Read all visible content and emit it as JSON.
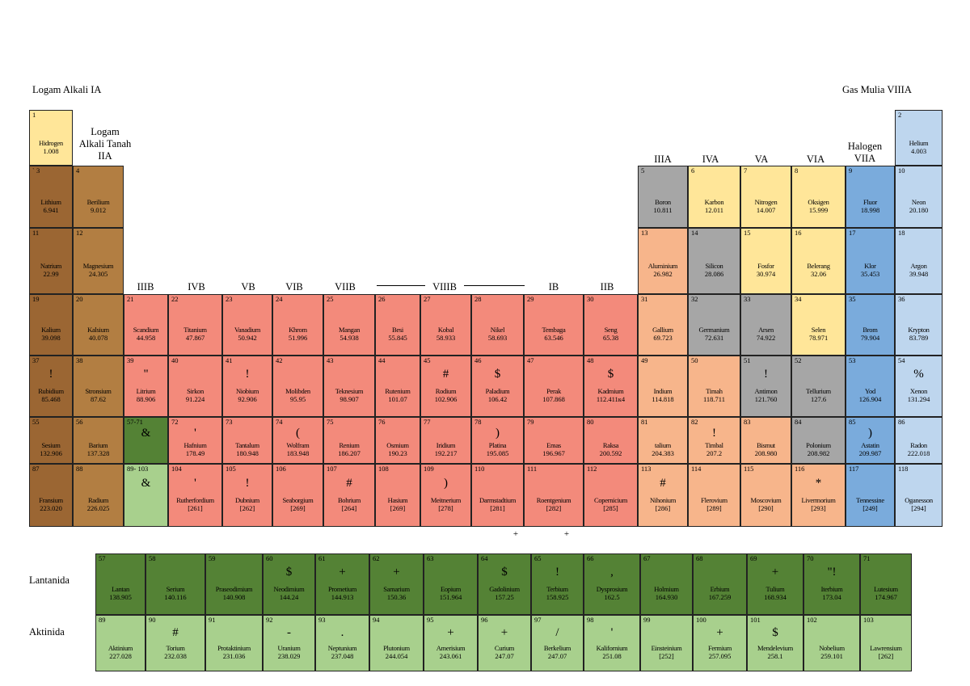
{
  "colors": {
    "alkali": "#9b6633",
    "alkaline": "#b27e42",
    "transition": "#f38a7b",
    "post": "#f7b58b",
    "metalloid": "#a6a6a6",
    "nonmetal": "#ffe699",
    "halogen": "#7aabdc",
    "noble": "#bed6ee",
    "lanthanide": "#548235",
    "actinide": "#a8d08d"
  },
  "group_labels": {
    "g1": "Logam Alkali IA",
    "g2": "Logam\nAlkali Tanah\nIIA",
    "g3": "IIIB",
    "g4": "IVB",
    "g5": "VB",
    "g6": "VIB",
    "g7": "VIIB",
    "g8": "VIIIB",
    "g11": "IB",
    "g12": "IIB",
    "g13": "IIIA",
    "g14": "IVA",
    "g15": "VA",
    "g16": "VIA",
    "g17": "Halogen\nVIIA",
    "g18": "Gas Mulia VIIIA"
  },
  "row_labels": {
    "lanthanide": "Lantanida",
    "actinide": "Aktinida"
  },
  "extra_marks": {
    "plus_a": "+",
    "plus_b": "+"
  },
  "elements": [
    {
      "n": "1",
      "name": "Hidrogen",
      "mass": "1.008",
      "sym": "",
      "cat": "nonmetal",
      "g": 1,
      "p": 1
    },
    {
      "n": "2",
      "name": "Helium",
      "mass": "4.003",
      "sym": "",
      "cat": "noble",
      "g": 18,
      "p": 1
    },
    {
      "n": "` 3",
      "name": "Lithium",
      "mass": "6.941",
      "sym": "",
      "cat": "alkali",
      "g": 1,
      "p": 2
    },
    {
      "n": "4",
      "name": "Berilium",
      "mass": "9.012",
      "sym": "",
      "cat": "alkaline",
      "g": 2,
      "p": 2
    },
    {
      "n": "5",
      "name": "Boron",
      "mass": "10.811",
      "sym": "",
      "cat": "metalloid",
      "g": 13,
      "p": 2
    },
    {
      "n": "6",
      "name": "Karbon",
      "mass": "12.011",
      "sym": "",
      "cat": "nonmetal",
      "g": 14,
      "p": 2
    },
    {
      "n": "7",
      "name": "Nitrogen",
      "mass": "14.007",
      "sym": "",
      "cat": "nonmetal",
      "g": 15,
      "p": 2
    },
    {
      "n": "8",
      "name": "Oksigen",
      "mass": "15.999",
      "sym": "",
      "cat": "nonmetal",
      "g": 16,
      "p": 2
    },
    {
      "n": "9",
      "name": "Fluor",
      "mass": "18.998",
      "sym": "",
      "cat": "halogen",
      "g": 17,
      "p": 2
    },
    {
      "n": "10",
      "name": "Neon",
      "mass": "20.180",
      "sym": "",
      "cat": "noble",
      "g": 18,
      "p": 2
    },
    {
      "n": "11",
      "name": "Natrium",
      "mass": "22.99",
      "sym": "",
      "cat": "alkali",
      "g": 1,
      "p": 3
    },
    {
      "n": "12",
      "name": "Magnesium",
      "mass": "24.305",
      "sym": "",
      "cat": "alkaline",
      "g": 2,
      "p": 3
    },
    {
      "n": "13",
      "name": "Aluminium",
      "mass": "26.982",
      "sym": "",
      "cat": "post",
      "g": 13,
      "p": 3
    },
    {
      "n": "14",
      "name": "Silicon",
      "mass": "28.086",
      "sym": "",
      "cat": "metalloid",
      "g": 14,
      "p": 3
    },
    {
      "n": "15",
      "name": "Fosfor",
      "mass": "30.974",
      "sym": "",
      "cat": "nonmetal",
      "g": 15,
      "p": 3
    },
    {
      "n": "16",
      "name": "Belerang",
      "mass": "32.06",
      "sym": "",
      "cat": "nonmetal",
      "g": 16,
      "p": 3
    },
    {
      "n": "17",
      "name": "Klor",
      "mass": "35.453",
      "sym": "",
      "cat": "halogen",
      "g": 17,
      "p": 3
    },
    {
      "n": "18",
      "name": "Argon",
      "mass": "39.948",
      "sym": "",
      "cat": "noble",
      "g": 18,
      "p": 3
    },
    {
      "n": "19",
      "name": "Kalium",
      "mass": "39.098",
      "sym": "",
      "cat": "alkali",
      "g": 1,
      "p": 4
    },
    {
      "n": "20",
      "name": "Kalsium",
      "mass": "40.078",
      "sym": "",
      "cat": "alkaline",
      "g": 2,
      "p": 4
    },
    {
      "n": "21",
      "name": "Scandium",
      "mass": "44.958",
      "sym": "",
      "cat": "transition",
      "g": 3,
      "p": 4
    },
    {
      "n": "22",
      "name": "Titanium",
      "mass": "47.867",
      "sym": "",
      "cat": "transition",
      "g": 4,
      "p": 4
    },
    {
      "n": "23",
      "name": "Vanadium",
      "mass": "50.942",
      "sym": "",
      "cat": "transition",
      "g": 5,
      "p": 4
    },
    {
      "n": "24",
      "name": "Khrom",
      "mass": "51.996",
      "sym": "",
      "cat": "transition",
      "g": 6,
      "p": 4
    },
    {
      "n": "25",
      "name": "Mangan",
      "mass": "54.938",
      "sym": "",
      "cat": "transition",
      "g": 7,
      "p": 4
    },
    {
      "n": "26",
      "name": "Besi",
      "mass": "55.845",
      "sym": "",
      "cat": "transition",
      "g": 8,
      "p": 4
    },
    {
      "n": "27",
      "name": "Kobal",
      "mass": "58.933",
      "sym": "",
      "cat": "transition",
      "g": 9,
      "p": 4
    },
    {
      "n": "28",
      "name": "Nikel",
      "mass": "58.693",
      "sym": "",
      "cat": "transition",
      "g": 10,
      "p": 4
    },
    {
      "n": "29",
      "name": "Tembaga",
      "mass": "63.546",
      "sym": "",
      "cat": "transition",
      "g": 11,
      "p": 4
    },
    {
      "n": "30",
      "name": "Seng",
      "mass": "65.38",
      "sym": "",
      "cat": "transition",
      "g": 12,
      "p": 4
    },
    {
      "n": "31",
      "name": "Gallium",
      "mass": "69.723",
      "sym": "",
      "cat": "post",
      "g": 13,
      "p": 4
    },
    {
      "n": "32",
      "name": "Germanium",
      "mass": "72.631",
      "sym": "",
      "cat": "metalloid",
      "g": 14,
      "p": 4
    },
    {
      "n": "33",
      "name": "Arsen",
      "mass": "74.922",
      "sym": "",
      "cat": "metalloid",
      "g": 15,
      "p": 4
    },
    {
      "n": "34",
      "name": "Selen",
      "mass": "78.971",
      "sym": "",
      "cat": "nonmetal",
      "g": 16,
      "p": 4
    },
    {
      "n": "35",
      "name": "Brom",
      "mass": "79.904",
      "sym": "",
      "cat": "halogen",
      "g": 17,
      "p": 4
    },
    {
      "n": "36",
      "name": "Krypton",
      "mass": "83.789",
      "sym": "",
      "cat": "noble",
      "g": 18,
      "p": 4
    },
    {
      "n": "37",
      "name": "Rubidium",
      "mass": "85.468",
      "sym": "!",
      "cat": "alkali",
      "g": 1,
      "p": 5
    },
    {
      "n": "38",
      "name": "Stronsium",
      "mass": "87.62",
      "sym": "",
      "cat": "alkaline",
      "g": 2,
      "p": 5
    },
    {
      "n": "39",
      "name": "Litrium",
      "mass": "88.906",
      "sym": "\"",
      "cat": "transition",
      "g": 3,
      "p": 5
    },
    {
      "n": "40",
      "name": "Sirkon",
      "mass": "91.224",
      "sym": "",
      "cat": "transition",
      "g": 4,
      "p": 5
    },
    {
      "n": "41",
      "name": "Niobium",
      "mass": "92.906",
      "sym": "!",
      "cat": "transition",
      "g": 5,
      "p": 5
    },
    {
      "n": "42",
      "name": "Molibden",
      "mass": "95.95",
      "sym": "",
      "cat": "transition",
      "g": 6,
      "p": 5
    },
    {
      "n": "43",
      "name": "Teknesium",
      "mass": "98.907",
      "sym": "",
      "cat": "transition",
      "g": 7,
      "p": 5
    },
    {
      "n": "44",
      "name": "Rutenium",
      "mass": "101.07",
      "sym": "",
      "cat": "transition",
      "g": 8,
      "p": 5
    },
    {
      "n": "45",
      "name": "Rodium",
      "mass": "102.906",
      "sym": "#",
      "cat": "transition",
      "g": 9,
      "p": 5
    },
    {
      "n": "46",
      "name": "Paladium",
      "mass": "106.42",
      "sym": "$",
      "cat": "transition",
      "g": 10,
      "p": 5
    },
    {
      "n": "47",
      "name": "Perak",
      "mass": "107.868",
      "sym": "",
      "cat": "transition",
      "g": 11,
      "p": 5
    },
    {
      "n": "48",
      "name": "Kadmium",
      "mass": "112.411к4",
      "sym": "$",
      "cat": "transition",
      "g": 12,
      "p": 5
    },
    {
      "n": "49",
      "name": "Indium",
      "mass": "114.818",
      "sym": "",
      "cat": "post",
      "g": 13,
      "p": 5
    },
    {
      "n": "50",
      "name": "Timah",
      "mass": "118.711",
      "sym": "",
      "cat": "post",
      "g": 14,
      "p": 5
    },
    {
      "n": "51",
      "name": "Antimon",
      "mass": "121.760",
      "sym": "!",
      "cat": "metalloid",
      "g": 15,
      "p": 5
    },
    {
      "n": "52",
      "name": "Tellurium",
      "mass": "127.6",
      "sym": "",
      "cat": "metalloid",
      "g": 16,
      "p": 5
    },
    {
      "n": "53",
      "name": "Yod",
      "mass": "126.904",
      "sym": "",
      "cat": "halogen",
      "g": 17,
      "p": 5
    },
    {
      "n": "54",
      "name": "Xenon",
      "mass": "131.294",
      "sym": "%",
      "cat": "noble",
      "g": 18,
      "p": 5
    },
    {
      "n": "55",
      "name": "Sesium",
      "mass": "132.906",
      "sym": "",
      "cat": "alkali",
      "g": 1,
      "p": 6
    },
    {
      "n": "56",
      "name": "Barium",
      "mass": "137.328",
      "sym": "",
      "cat": "alkaline",
      "g": 2,
      "p": 6
    },
    {
      "n": "57-71",
      "name": "",
      "mass": "",
      "sym": "&",
      "cat": "lanthanide",
      "g": 3,
      "p": 6
    },
    {
      "n": "72",
      "name": "Hafnium",
      "mass": "178.49",
      "sym": "'",
      "cat": "transition",
      "g": 4,
      "p": 6
    },
    {
      "n": "73",
      "name": "Tantalum",
      "mass": "180.948",
      "sym": "",
      "cat": "transition",
      "g": 5,
      "p": 6
    },
    {
      "n": "74",
      "name": "Wolfram",
      "mass": "183.948",
      "sym": "(",
      "cat": "transition",
      "g": 6,
      "p": 6
    },
    {
      "n": "75",
      "name": "Renium",
      "mass": "186.207",
      "sym": "",
      "cat": "transition",
      "g": 7,
      "p": 6
    },
    {
      "n": "76",
      "name": "Osmium",
      "mass": "190.23",
      "sym": "",
      "cat": "transition",
      "g": 8,
      "p": 6
    },
    {
      "n": "77",
      "name": "Iridium",
      "mass": "192.217",
      "sym": "",
      "cat": "transition",
      "g": 9,
      "p": 6
    },
    {
      "n": "78",
      "name": "Platina",
      "mass": "195.085",
      "sym": ")",
      "cat": "transition",
      "g": 10,
      "p": 6
    },
    {
      "n": "79",
      "name": "Emas",
      "mass": "196.967",
      "sym": "",
      "cat": "transition",
      "g": 11,
      "p": 6
    },
    {
      "n": "80",
      "name": "Raksa",
      "mass": "200.592",
      "sym": "",
      "cat": "transition",
      "g": 12,
      "p": 6
    },
    {
      "n": "81",
      "name": "talium",
      "mass": "204.383",
      "sym": "",
      "cat": "post",
      "g": 13,
      "p": 6
    },
    {
      "n": "82",
      "name": "Timbal",
      "mass": "207.2",
      "sym": "!",
      "cat": "post",
      "g": 14,
      "p": 6
    },
    {
      "n": "83",
      "name": "Bismut",
      "mass": "208.980",
      "sym": "",
      "cat": "post",
      "g": 15,
      "p": 6
    },
    {
      "n": "84",
      "name": "Polonium",
      "mass": "208.982",
      "sym": "",
      "cat": "metalloid",
      "g": 16,
      "p": 6
    },
    {
      "n": "85",
      "name": "Astatin",
      "mass": "209.987",
      "sym": ")",
      "cat": "halogen",
      "g": 17,
      "p": 6
    },
    {
      "n": "86",
      "name": "Radon",
      "mass": "222.018",
      "sym": "",
      "cat": "noble",
      "g": 18,
      "p": 6
    },
    {
      "n": "87",
      "name": "Fransium",
      "mass": "223.020",
      "sym": "",
      "cat": "alkali",
      "g": 1,
      "p": 7
    },
    {
      "n": "88",
      "name": "Radium",
      "mass": "226.025",
      "sym": "",
      "cat": "alkaline",
      "g": 2,
      "p": 7
    },
    {
      "n": "89- 103",
      "name": "",
      "mass": "",
      "sym": "&",
      "cat": "actinide",
      "g": 3,
      "p": 7
    },
    {
      "n": "104",
      "name": "Rutherfordium",
      "mass": "[261]",
      "sym": "'",
      "cat": "transition",
      "g": 4,
      "p": 7
    },
    {
      "n": "105",
      "name": "Dubnium",
      "mass": "[262]",
      "sym": "!",
      "cat": "transition",
      "g": 5,
      "p": 7
    },
    {
      "n": "106",
      "name": "Seaborgium",
      "mass": "[269]",
      "sym": "",
      "cat": "transition",
      "g": 6,
      "p": 7
    },
    {
      "n": "107",
      "name": "Bohrium",
      "mass": "[264]",
      "sym": "#",
      "cat": "transition",
      "g": 7,
      "p": 7
    },
    {
      "n": "108",
      "name": "Hasium",
      "mass": "[269]",
      "sym": "",
      "cat": "transition",
      "g": 8,
      "p": 7
    },
    {
      "n": "109",
      "name": "Meitnerium",
      "mass": "[278]",
      "sym": ")",
      "cat": "transition",
      "g": 9,
      "p": 7
    },
    {
      "n": "110",
      "name": "Darmstadtium",
      "mass": "[281]",
      "sym": "",
      "cat": "transition",
      "g": 10,
      "p": 7
    },
    {
      "n": "111",
      "name": "Roentgenium",
      "mass": "[282]",
      "sym": "",
      "cat": "transition",
      "g": 11,
      "p": 7
    },
    {
      "n": "112",
      "name": "Copernicium",
      "mass": "[285]",
      "sym": "",
      "cat": "transition",
      "g": 12,
      "p": 7
    },
    {
      "n": "113",
      "name": "Nihonium",
      "mass": "[286]",
      "sym": "#",
      "cat": "post",
      "g": 13,
      "p": 7
    },
    {
      "n": "114",
      "name": "Flerovium",
      "mass": "[289]",
      "sym": "",
      "cat": "post",
      "g": 14,
      "p": 7
    },
    {
      "n": "115",
      "name": "Moscovium",
      "mass": "[290]",
      "sym": "",
      "cat": "post",
      "g": 15,
      "p": 7
    },
    {
      "n": "116",
      "name": "Livermorium",
      "mass": "[293]",
      "sym": "*",
      "cat": "post",
      "g": 16,
      "p": 7
    },
    {
      "n": "117",
      "name": "Tennessine",
      "mass": "[249]",
      "sym": "",
      "cat": "halogen",
      "g": 17,
      "p": 7
    },
    {
      "n": "118",
      "name": "Oganesson",
      "mass": "[294]",
      "sym": "",
      "cat": "noble",
      "g": 18,
      "p": 7
    }
  ],
  "lanthanides": [
    {
      "n": "57",
      "name": "Lantan",
      "mass": "138.905",
      "sym": ""
    },
    {
      "n": "58",
      "name": "Serium",
      "mass": "140.116",
      "sym": ""
    },
    {
      "n": "59",
      "name": "Praseodimium",
      "mass": "140.908",
      "sym": ""
    },
    {
      "n": "60",
      "name": "Neodimium",
      "mass": "144.24",
      "sym": "$"
    },
    {
      "n": "61",
      "name": "Prometium",
      "mass": "144.913",
      "sym": "+"
    },
    {
      "n": "62",
      "name": "Samarium",
      "mass": "150.36",
      "sym": "+"
    },
    {
      "n": "63",
      "name": "Eopium",
      "mass": "151.964",
      "sym": ""
    },
    {
      "n": "64",
      "name": "Gadolinium",
      "mass": "157.25",
      "sym": "$"
    },
    {
      "n": "65",
      "name": "Terbium",
      "mass": "158.925",
      "sym": "!"
    },
    {
      "n": "66",
      "name": "Dysprosium",
      "mass": "162.5",
      "sym": ","
    },
    {
      "n": "67",
      "name": "Holmium",
      "mass": "164.930",
      "sym": ""
    },
    {
      "n": "68",
      "name": "Erbium",
      "mass": "167.259",
      "sym": ""
    },
    {
      "n": "69",
      "name": "Tulium",
      "mass": "168.934",
      "sym": "+"
    },
    {
      "n": "70",
      "name": "Iterbium",
      "mass": "173.04",
      "sym": "\"!"
    },
    {
      "n": "71",
      "name": "Lutesium",
      "mass": "174.967",
      "sym": ""
    }
  ],
  "actinides": [
    {
      "n": "89",
      "name": "Aktinium",
      "mass": "227.028",
      "sym": ""
    },
    {
      "n": "90",
      "name": "Torium",
      "mass": "232.038",
      "sym": "#"
    },
    {
      "n": "91",
      "name": "Protaktinium",
      "mass": "231.036",
      "sym": ""
    },
    {
      "n": "92",
      "name": "Uranium",
      "mass": "238.029",
      "sym": "-"
    },
    {
      "n": "93",
      "name": "Neptunium",
      "mass": "237.048",
      "sym": "."
    },
    {
      "n": "94",
      "name": "Plutonium",
      "mass": "244.054",
      "sym": ""
    },
    {
      "n": "95",
      "name": "Amerisium",
      "mass": "243.061",
      "sym": "+"
    },
    {
      "n": "96",
      "name": "Curium",
      "mass": "247.07",
      "sym": "+"
    },
    {
      "n": "97",
      "name": "Berkelium",
      "mass": "247.07",
      "sym": "/"
    },
    {
      "n": "98",
      "name": "Kalifornium",
      "mass": "251.08",
      "sym": "'"
    },
    {
      "n": "99",
      "name": "Einsteinium",
      "mass": "[252]",
      "sym": ""
    },
    {
      "n": "100",
      "name": "Fermium",
      "mass": "257.095",
      "sym": "+"
    },
    {
      "n": "101",
      "name": "Mendelevium",
      "mass": "258.1",
      "sym": "$"
    },
    {
      "n": "102",
      "name": "Nobelium",
      "mass": "259.101",
      "sym": ""
    },
    {
      "n": "103",
      "name": "Lawrensium",
      "mass": "[262]",
      "sym": ""
    }
  ]
}
